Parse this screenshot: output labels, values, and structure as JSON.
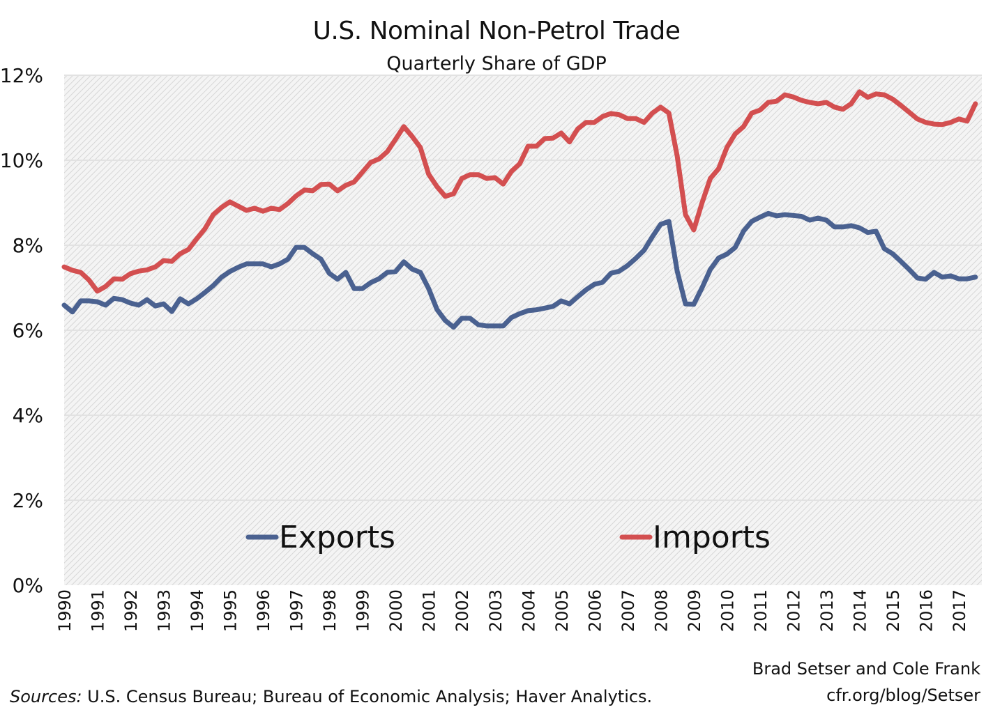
{
  "chart_data": {
    "type": "line",
    "title": "U.S. Nominal Non-Petrol Trade",
    "subtitle": "Quarterly Share of GDP",
    "xlabel": "",
    "ylabel": "",
    "ylim": [
      0,
      12
    ],
    "yticks": [
      "0%",
      "2%",
      "4%",
      "6%",
      "8%",
      "10%",
      "12%"
    ],
    "ytick_values": [
      0,
      2,
      4,
      6,
      8,
      10,
      12
    ],
    "xticks": [
      "1990",
      "1991",
      "1992",
      "1993",
      "1994",
      "1995",
      "1996",
      "1997",
      "1998",
      "1999",
      "2000",
      "2001",
      "2002",
      "2003",
      "2004",
      "2005",
      "2006",
      "2007",
      "2008",
      "2009",
      "2010",
      "2011",
      "2012",
      "2013",
      "2014",
      "2015",
      "2016",
      "2017"
    ],
    "x_start": "1990 Q1",
    "x_frequency": "quarterly",
    "grid": true,
    "legend_position": "bottom-inside",
    "series": [
      {
        "name": "Exports",
        "color": "#4a6190",
        "values": [
          6.59,
          6.43,
          6.69,
          6.69,
          6.67,
          6.59,
          6.75,
          6.72,
          6.64,
          6.59,
          6.72,
          6.57,
          6.62,
          6.44,
          6.74,
          6.62,
          6.74,
          6.89,
          7.05,
          7.25,
          7.38,
          7.48,
          7.56,
          7.56,
          7.56,
          7.49,
          7.56,
          7.67,
          7.95,
          7.95,
          7.8,
          7.67,
          7.34,
          7.2,
          7.36,
          6.98,
          6.98,
          7.12,
          7.21,
          7.36,
          7.38,
          7.61,
          7.44,
          7.36,
          6.98,
          6.49,
          6.23,
          6.07,
          6.28,
          6.28,
          6.13,
          6.1,
          6.1,
          6.1,
          6.3,
          6.39,
          6.46,
          6.48,
          6.52,
          6.56,
          6.69,
          6.62,
          6.79,
          6.95,
          7.08,
          7.13,
          7.34,
          7.39,
          7.52,
          7.69,
          7.88,
          8.2,
          8.49,
          8.56,
          7.39,
          6.62,
          6.61,
          7.0,
          7.43,
          7.7,
          7.79,
          7.95,
          8.33,
          8.56,
          8.66,
          8.75,
          8.69,
          8.72,
          8.7,
          8.68,
          8.59,
          8.64,
          8.59,
          8.43,
          8.43,
          8.46,
          8.41,
          8.3,
          8.33,
          7.92,
          7.8,
          7.62,
          7.43,
          7.23,
          7.2,
          7.36,
          7.25,
          7.28,
          7.21,
          7.21,
          7.25
        ]
      },
      {
        "name": "Imports",
        "color": "#d34f50",
        "values": [
          7.49,
          7.41,
          7.36,
          7.18,
          6.92,
          7.03,
          7.21,
          7.2,
          7.33,
          7.39,
          7.42,
          7.49,
          7.64,
          7.62,
          7.8,
          7.9,
          8.15,
          8.39,
          8.72,
          8.89,
          9.02,
          8.92,
          8.82,
          8.87,
          8.8,
          8.87,
          8.84,
          8.98,
          9.16,
          9.3,
          9.28,
          9.43,
          9.44,
          9.28,
          9.41,
          9.49,
          9.72,
          9.95,
          10.03,
          10.2,
          10.49,
          10.79,
          10.56,
          10.3,
          9.67,
          9.38,
          9.15,
          9.21,
          9.57,
          9.66,
          9.66,
          9.57,
          9.59,
          9.44,
          9.74,
          9.92,
          10.33,
          10.33,
          10.51,
          10.52,
          10.64,
          10.43,
          10.74,
          10.89,
          10.89,
          11.03,
          11.1,
          11.07,
          10.98,
          10.98,
          10.89,
          11.11,
          11.25,
          11.11,
          10.1,
          8.72,
          8.36,
          9.0,
          9.57,
          9.8,
          10.3,
          10.62,
          10.79,
          11.11,
          11.18,
          11.36,
          11.39,
          11.54,
          11.49,
          11.41,
          11.36,
          11.33,
          11.36,
          11.25,
          11.2,
          11.33,
          11.61,
          11.48,
          11.56,
          11.54,
          11.44,
          11.29,
          11.13,
          10.97,
          10.89,
          10.85,
          10.84,
          10.89,
          10.97,
          10.92,
          11.33
        ]
      }
    ]
  },
  "credits": {
    "authors": "Brad Setser and Cole Frank",
    "url": "cfr.org/blog/Setser"
  },
  "sources": {
    "label": "Sources:",
    "text": " U.S. Census Bureau; Bureau of Economic Analysis; Haver Analytics."
  }
}
